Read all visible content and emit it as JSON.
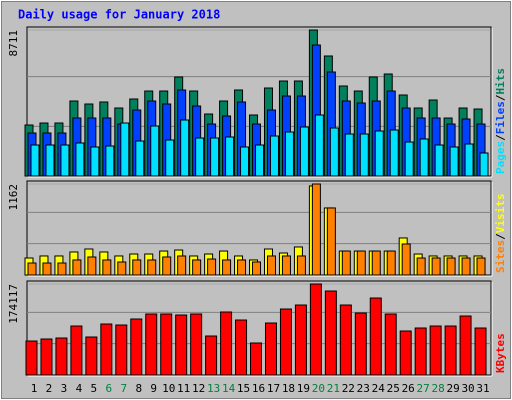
{
  "chart_data": [
    {
      "type": "bar",
      "title": "Daily usage for January 2018",
      "ylim": [
        0,
        8711
      ],
      "yticks": [
        8711
      ],
      "legend_separator": "/",
      "series": [
        {
          "name": "Hits",
          "color": "#00805c",
          "values": [
            3043,
            3162,
            3162,
            4475,
            4296,
            4415,
            4057,
            4594,
            5071,
            5071,
            5907,
            5071,
            3699,
            4475,
            5131,
            3640,
            5250,
            5668,
            5668,
            8711,
            7160,
            5370,
            5071,
            5907,
            6086,
            4833,
            4057,
            4534,
            3460,
            4057,
            3997
          ]
        },
        {
          "name": "Files",
          "color": "#0040ff",
          "values": [
            2566,
            2566,
            2566,
            3461,
            3461,
            3461,
            3102,
            3938,
            4475,
            4296,
            5131,
            4176,
            3102,
            3580,
            4415,
            3102,
            3938,
            4773,
            4773,
            7816,
            6205,
            4475,
            4355,
            4475,
            5071,
            4057,
            3461,
            3461,
            3102,
            3401,
            3102
          ]
        },
        {
          "name": "Pages",
          "color": "#00e0ff",
          "values": [
            1849,
            1849,
            1849,
            1969,
            1730,
            1790,
            3162,
            2088,
            2983,
            2148,
            3341,
            2267,
            2267,
            2327,
            1730,
            1849,
            2386,
            2625,
            2923,
            3639,
            2864,
            2506,
            2506,
            2685,
            2744,
            2028,
            2207,
            1849,
            1730,
            1909,
            1372
          ]
        }
      ]
    },
    {
      "type": "bar",
      "ylim": [
        0,
        1162
      ],
      "yticks": [
        1162
      ],
      "legend_separator": "/",
      "series": [
        {
          "name": "Visits",
          "color": "#ffff00",
          "values": [
            217,
            243,
            243,
            294,
            332,
            294,
            243,
            268,
            268,
            306,
            319,
            243,
            268,
            306,
            243,
            192,
            332,
            281,
            358,
            1137,
            856,
            306,
            306,
            306,
            306,
            473,
            268,
            243,
            243,
            243,
            243
          ]
        },
        {
          "name": "Sites",
          "color": "#ff8000",
          "values": [
            153,
            153,
            153,
            192,
            230,
            192,
            166,
            192,
            192,
            230,
            243,
            192,
            204,
            192,
            192,
            166,
            243,
            243,
            243,
            1162,
            856,
            306,
            306,
            306,
            306,
            396,
            217,
            217,
            217,
            217,
            217
          ]
        }
      ]
    },
    {
      "type": "bar",
      "ylim": [
        0,
        174117
      ],
      "yticks": [
        174117
      ],
      "categories": [
        "1",
        "2",
        "3",
        "4",
        "5",
        "6",
        "7",
        "8",
        "9",
        "10",
        "11",
        "12",
        "13",
        "14",
        "15",
        "16",
        "17",
        "18",
        "19",
        "20",
        "21",
        "22",
        "23",
        "24",
        "25",
        "26",
        "27",
        "28",
        "29",
        "30",
        "31"
      ],
      "category_colors": [
        "#000000",
        "#000000",
        "#000000",
        "#000000",
        "#000000",
        "#008040",
        "#008040",
        "#000000",
        "#000000",
        "#000000",
        "#000000",
        "#000000",
        "#008040",
        "#008040",
        "#000000",
        "#000000",
        "#000000",
        "#000000",
        "#000000",
        "#008040",
        "#008040",
        "#000000",
        "#000000",
        "#000000",
        "#000000",
        "#000000",
        "#008040",
        "#008040",
        "#000000",
        "#000000",
        "#000000"
      ],
      "series": [
        {
          "name": "KBytes",
          "color": "#ff0000",
          "values": [
            65052,
            68880,
            70780,
            93740,
            72700,
            97570,
            95650,
            107140,
            116700,
            116700,
            114790,
            116700,
            74610,
            120530,
            105220,
            61220,
            99480,
            126270,
            133920,
            174117,
            160710,
            133920,
            118610,
            147310,
            116700,
            84180,
            89920,
            93740,
            93740,
            112880,
            89920
          ]
        }
      ]
    }
  ]
}
